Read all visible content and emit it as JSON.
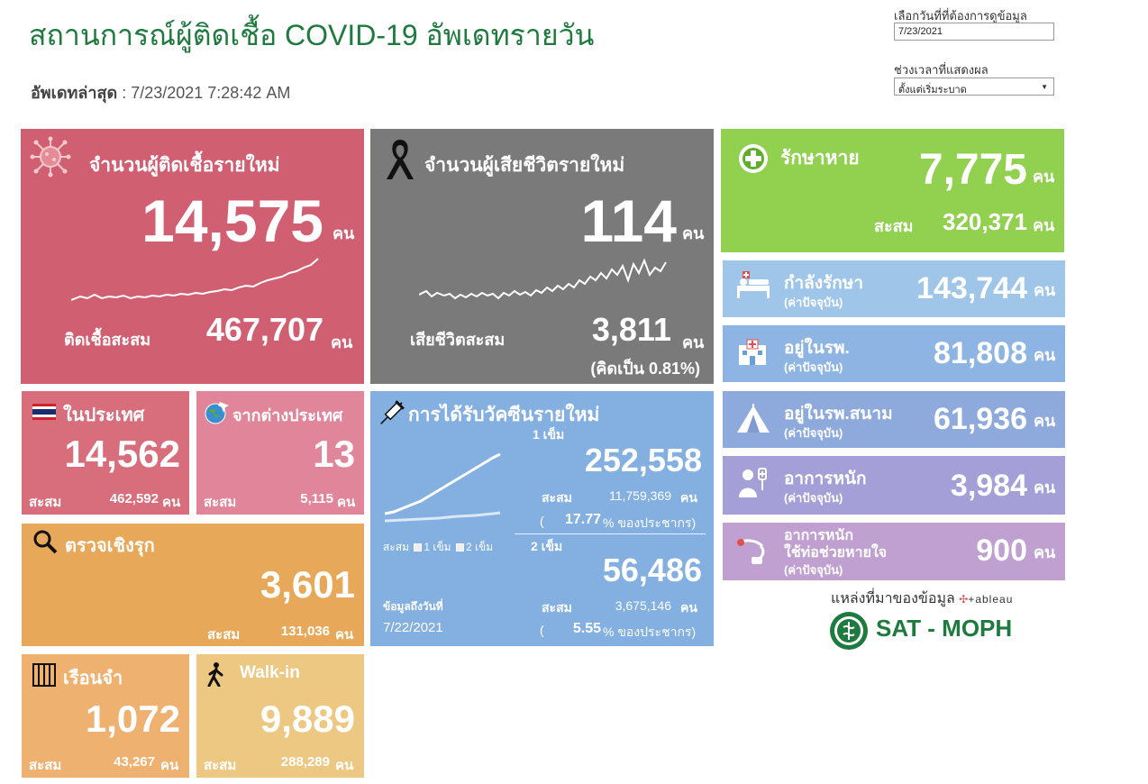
{
  "header": {
    "title": "สถานการณ์ผู้ติดเชื้อ COVID-19 อัพเดทรายวัน",
    "updated_label": "อัพเดทล่าสุด",
    "updated_value": " : 7/23/2021 7:28:42 AM"
  },
  "controls": {
    "date_label": "เลือกวันที่ที่ต้องการดูข้อมูล",
    "date_value": "7/23/2021",
    "range_label": "ช่วงเวลาที่แสดงผล",
    "range_value": "ตั้งแต่เริ่มระบาด"
  },
  "unit": "คน",
  "new_cases": {
    "label": "จำนวนผู้ติดเชื้อรายใหม่",
    "value": "14,575",
    "cum_label": "ติดเชื้อสะสม",
    "cum_value": "467,707"
  },
  "new_deaths": {
    "label": "จำนวนผู้เสียชีวิตรายใหม่",
    "value": "114",
    "cum_label": "เสียชีวิตสะสม",
    "cum_value": "3,811",
    "rate": "(คิดเป็น 0.81%)"
  },
  "recovered": {
    "label": "รักษาหาย",
    "value": "7,775",
    "cum_label": "สะสม",
    "cum_value": "320,371"
  },
  "current_label": "(ค่าปัจจุบัน)",
  "treating": {
    "label": "กำลังรักษา",
    "value": "143,744"
  },
  "hospital": {
    "label": "อยู่ในรพ.",
    "value": "81,808"
  },
  "field_hospital": {
    "label": "อยู่ในรพ.สนาม",
    "value": "61,936"
  },
  "severe": {
    "label": "อาการหนัก",
    "value": "3,984"
  },
  "ventilator": {
    "label1": "อาการหนัก",
    "label2": "ใช้ท่อช่วยหายใจ",
    "value": "900"
  },
  "domestic": {
    "label": "ในประเทศ",
    "value": "14,562",
    "cum_label": "สะสม",
    "cum_value": "462,592"
  },
  "imported": {
    "label": "จากต่างประเทศ",
    "value": "13",
    "cum_label": "สะสม",
    "cum_value": "5,115"
  },
  "proactive": {
    "label": "ตรวจเชิงรุก",
    "value": "3,601",
    "cum_label": "สะสม",
    "cum_value": "131,036"
  },
  "prison": {
    "label": "เรือนจำ",
    "value": "1,072",
    "cum_label": "สะสม",
    "cum_value": "43,267"
  },
  "walkin": {
    "label": "Walk-in",
    "value": "9,889",
    "cum_label": "สะสม",
    "cum_value": "288,289"
  },
  "vaccine": {
    "label": "การได้รับวัคซีนรายใหม่",
    "dose1_label": "1 เข็ม",
    "dose1_value": "252,558",
    "dose1_cum_label": "สะสม",
    "dose1_cum_value": "11,759,369",
    "dose1_pct_open": "(",
    "dose1_pct": "17.77",
    "pct_suffix": "% ของประชากร)",
    "dose2_label": "2 เข็ม",
    "dose2_value": "56,486",
    "dose2_cum_label": "สะสม",
    "dose2_cum_value": "3,675,146",
    "dose2_pct_open": "(",
    "dose2_pct": "5.55",
    "legend_cum": "สะสม",
    "legend_d1": "1 เข็ม",
    "legend_d2": "2 เข็ม",
    "data_as_of_label": "ข้อมูลถึงวันที่",
    "data_as_of": "7/22/2021"
  },
  "source": {
    "label": "แหล่งที่มาของข้อมูล",
    "tableau": "+ableau",
    "moph": "SAT - MOPH"
  },
  "colors": {
    "cases": "#d15f72",
    "deaths": "#7a7a7a",
    "recovered": "#92d050",
    "treating": "#9fc5e8",
    "hospital": "#8eb4e3",
    "field": "#8ea9db",
    "severe": "#a49fd6",
    "ventilator": "#c0a0d0",
    "domestic": "#d86d7c",
    "imported": "#e1869a",
    "proactive": "#e8a85a",
    "prison": "#efb170",
    "walkin": "#ecc882",
    "vaccine": "#83b0e0"
  },
  "icons": [
    "virus-icon",
    "ribbon-icon",
    "cross-icon",
    "bed-icon",
    "hospital-icon",
    "tent-icon",
    "patient-icon",
    "ventilator-icon",
    "thai-flag-icon",
    "globe-plane-icon",
    "magnifier-icon",
    "jail-bars-icon",
    "walking-person-icon",
    "syringe-icon"
  ]
}
